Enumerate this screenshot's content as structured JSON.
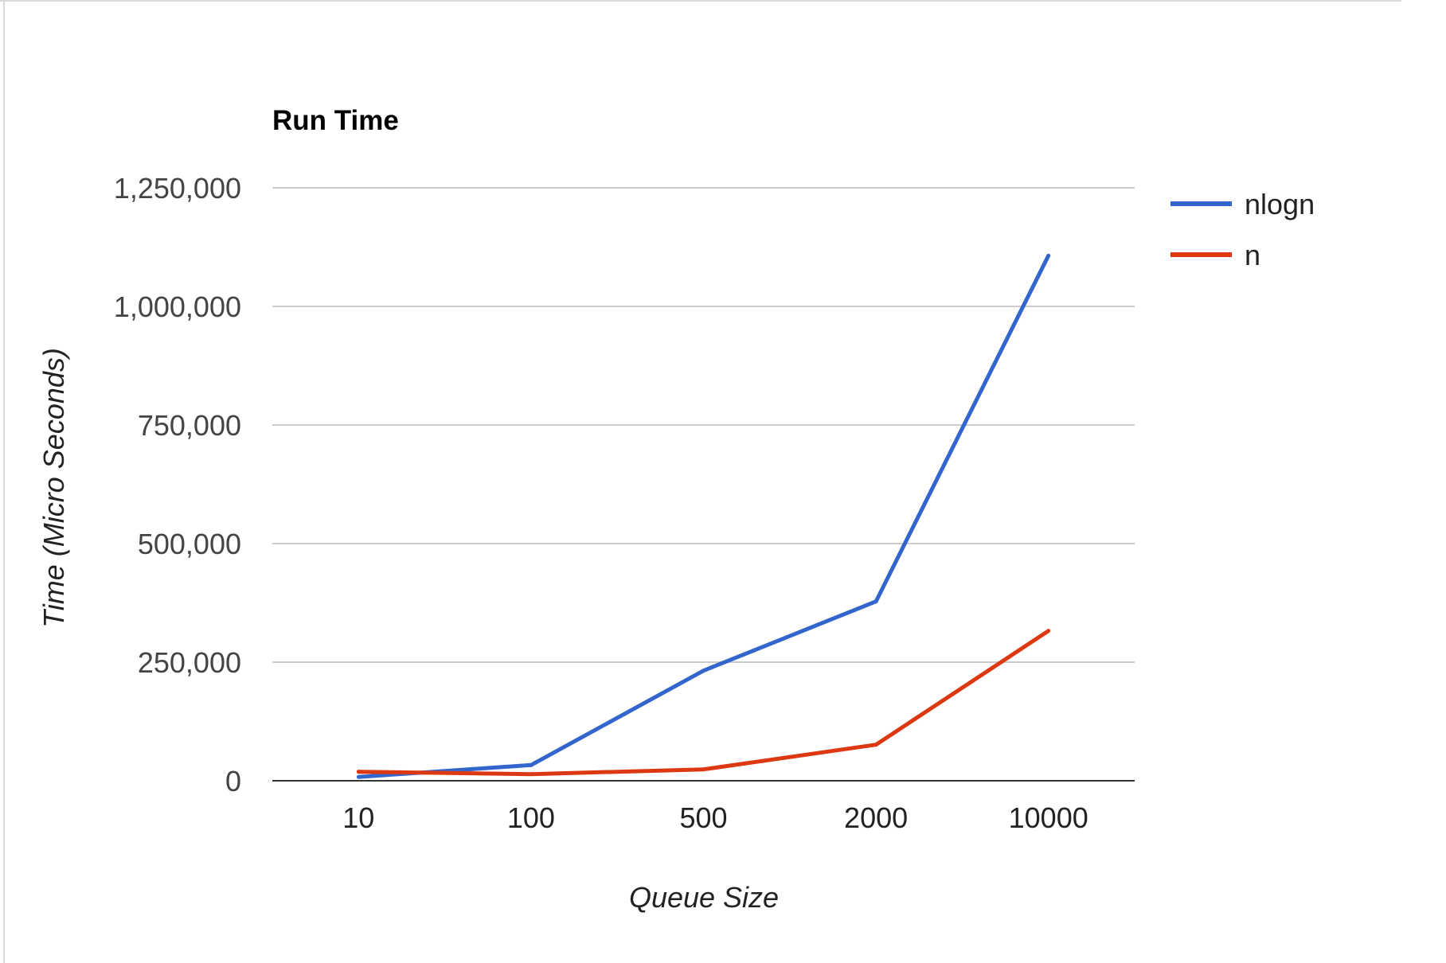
{
  "chart_data": {
    "type": "line",
    "title": "Run Time",
    "xlabel": "Queue Size",
    "ylabel": "Time (Micro Seconds)",
    "categories": [
      "10",
      "100",
      "500",
      "2000",
      "10000"
    ],
    "y_ticks": [
      "0",
      "250,000",
      "500,000",
      "750,000",
      "1,000,000",
      "1,250,000"
    ],
    "ylim": [
      0,
      1250000
    ],
    "grid": true,
    "legend_position": "right",
    "series": [
      {
        "name": "nlogn",
        "color": "#3366cc",
        "values": [
          8000,
          33000,
          232000,
          378000,
          1107000
        ]
      },
      {
        "name": "n",
        "color": "#dc3912",
        "values": [
          19000,
          14000,
          24000,
          76000,
          316000
        ]
      }
    ]
  }
}
